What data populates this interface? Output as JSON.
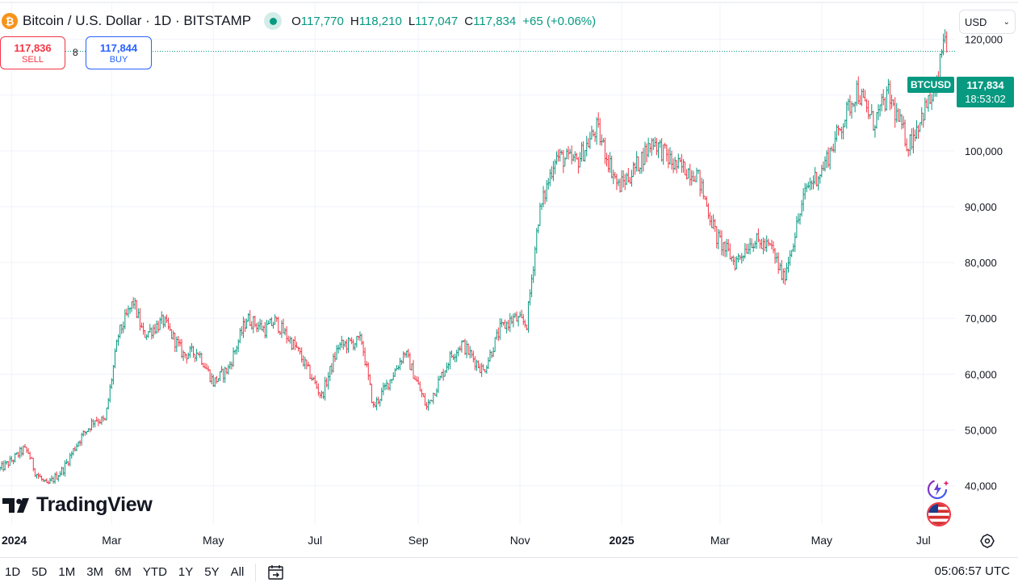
{
  "header": {
    "title": "Bitcoin / U.S. Dollar · 1D · BITSTAMP",
    "coin_icon": "bitcoin-icon",
    "ohlc": [
      {
        "label": "O",
        "value": "117,770"
      },
      {
        "label": "H",
        "value": "118,210"
      },
      {
        "label": "L",
        "value": "117,047"
      },
      {
        "label": "C",
        "value": "117,834"
      },
      {
        "label": "",
        "value": "+65 (+0.06%)"
      }
    ]
  },
  "trade": {
    "sell_price": "117,836",
    "sell_label": "SELL",
    "spread": "8",
    "buy_price": "117,844",
    "buy_label": "BUY"
  },
  "currency": "USD",
  "last_price_tag": {
    "symbol": "BTCUSD",
    "price": "117,834",
    "countdown": "18:53:02"
  },
  "brand": "TradingView",
  "bottom_bar": {
    "ranges": [
      "1D",
      "5D",
      "1M",
      "3M",
      "6M",
      "YTD",
      "1Y",
      "5Y",
      "All"
    ],
    "clock": "05:06:57 UTC"
  },
  "colors": {
    "up": "#089981",
    "down": "#f23645",
    "grid": "#f0f3fa",
    "text": "#131722"
  },
  "chart_data": {
    "type": "line",
    "style": "ohlc-bars",
    "series_name": "BTCUSD",
    "y_axis_position": "right",
    "ylim": [
      33000,
      125000
    ],
    "y_ticks": [
      40000,
      50000,
      60000,
      70000,
      80000,
      90000,
      100000,
      110000,
      120000
    ],
    "y_tick_labels": [
      "40,000",
      "50,000",
      "60,000",
      "70,000",
      "80,000",
      "90,000",
      "100,000",
      "110,000",
      "120,000"
    ],
    "x_range": [
      "2023-12-25",
      "2025-07-20"
    ],
    "x_ticks": [
      {
        "date": "2024-01-01",
        "label": "2024",
        "bold": true
      },
      {
        "date": "2024-03-01",
        "label": "Mar"
      },
      {
        "date": "2024-05-01",
        "label": "May"
      },
      {
        "date": "2024-07-01",
        "label": "Jul"
      },
      {
        "date": "2024-09-01",
        "label": "Sep"
      },
      {
        "date": "2024-11-01",
        "label": "Nov"
      },
      {
        "date": "2025-01-01",
        "label": "2025",
        "bold": true
      },
      {
        "date": "2025-03-01",
        "label": "Mar"
      },
      {
        "date": "2025-05-01",
        "label": "May"
      },
      {
        "date": "2025-07-01",
        "label": "Jul"
      }
    ],
    "last_close": 117834,
    "grid": true,
    "legend": "none",
    "x": [
      "2023-12-25",
      "2024-01-01",
      "2024-01-08",
      "2024-01-11",
      "2024-01-15",
      "2024-01-22",
      "2024-02-01",
      "2024-02-10",
      "2024-02-20",
      "2024-02-26",
      "2024-03-05",
      "2024-03-14",
      "2024-03-20",
      "2024-04-01",
      "2024-04-13",
      "2024-04-22",
      "2024-05-01",
      "2024-05-10",
      "2024-05-21",
      "2024-06-01",
      "2024-06-07",
      "2024-06-20",
      "2024-07-05",
      "2024-07-15",
      "2024-07-29",
      "2024-08-05",
      "2024-08-15",
      "2024-08-24",
      "2024-09-06",
      "2024-09-20",
      "2024-09-27",
      "2024-10-10",
      "2024-10-20",
      "2024-10-28",
      "2024-11-05",
      "2024-11-12",
      "2024-11-22",
      "2024-12-05",
      "2024-12-17",
      "2024-12-30",
      "2025-01-07",
      "2025-01-20",
      "2025-02-01",
      "2025-02-15",
      "2025-02-27",
      "2025-03-10",
      "2025-03-20",
      "2025-04-01",
      "2025-04-08",
      "2025-04-22",
      "2025-05-01",
      "2025-05-12",
      "2025-05-22",
      "2025-06-01",
      "2025-06-10",
      "2025-06-22",
      "2025-07-01",
      "2025-07-09",
      "2025-07-14",
      "2025-07-15"
    ],
    "values": [
      43000,
      44500,
      46500,
      46000,
      42500,
      40000,
      43000,
      48000,
      52000,
      51500,
      67000,
      73000,
      67000,
      69500,
      63500,
      64000,
      58500,
      61000,
      70000,
      68000,
      69500,
      64500,
      56000,
      65000,
      66000,
      54000,
      59000,
      64000,
      54000,
      63000,
      65500,
      60500,
      68000,
      70000,
      69000,
      88000,
      99000,
      98000,
      104000,
      93500,
      96000,
      102000,
      97500,
      96000,
      84500,
      80000,
      84000,
      82500,
      77000,
      93500,
      96500,
      104000,
      111000,
      105000,
      110000,
      101000,
      107000,
      111000,
      122000,
      117834
    ]
  }
}
